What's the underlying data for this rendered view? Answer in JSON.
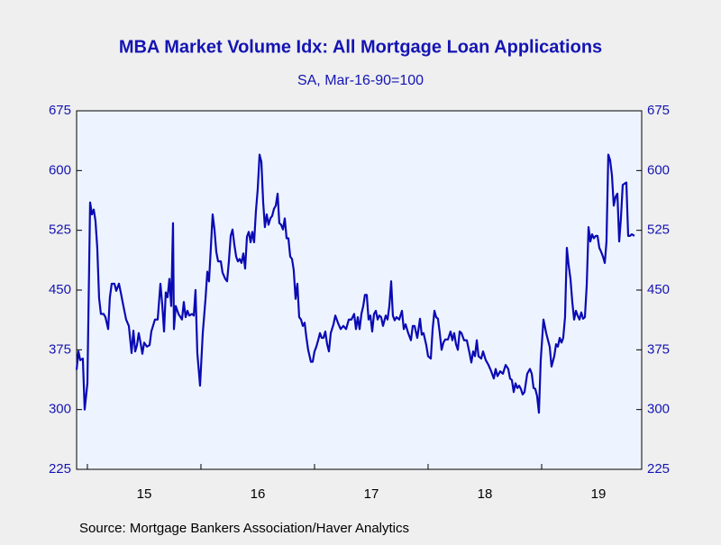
{
  "chart_data": {
    "type": "line",
    "title": "MBA Market Volume Idx: All Mortgage Loan Applications",
    "subtitle": "SA, Mar-16-90=100",
    "source": "Source:  Mortgage Bankers Association/Haver Analytics",
    "xlim": [
      2014.905,
      2019.881
    ],
    "xticks": [
      {
        "value": 2015.5,
        "label": "15"
      },
      {
        "value": 2016.5,
        "label": "16"
      },
      {
        "value": 2017.5,
        "label": "17"
      },
      {
        "value": 2018.5,
        "label": "18"
      },
      {
        "value": 2019.5,
        "label": "19"
      }
    ],
    "ylim": [
      225,
      675
    ],
    "yticks": [
      225,
      300,
      375,
      450,
      525,
      600,
      675
    ],
    "y2lim": [
      225,
      675
    ],
    "y2ticks": [
      225,
      300,
      375,
      450,
      525,
      600,
      675
    ],
    "x": [
      2014.905,
      2014.921,
      2014.937,
      2014.96,
      2014.976,
      2015.0,
      2015.024,
      2015.04,
      2015.056,
      2015.071,
      2015.087,
      2015.103,
      2015.119,
      2015.143,
      2015.159,
      2015.183,
      2015.198,
      2015.214,
      2015.238,
      2015.254,
      2015.278,
      2015.294,
      2015.317,
      2015.341,
      2015.365,
      2015.389,
      2015.405,
      2015.421,
      2015.437,
      2015.452,
      2015.468,
      2015.484,
      2015.5,
      2015.524,
      2015.548,
      2015.563,
      2015.595,
      2015.619,
      2015.643,
      2015.659,
      2015.675,
      2015.69,
      2015.706,
      2015.722,
      2015.738,
      2015.754,
      2015.762,
      2015.778,
      2015.802,
      2015.833,
      2015.849,
      2015.865,
      2015.881,
      2015.897,
      2015.921,
      2015.937,
      2015.952,
      2015.968,
      2015.992,
      2016.016,
      2016.04,
      2016.056,
      2016.071,
      2016.087,
      2016.103,
      2016.119,
      2016.135,
      2016.151,
      2016.175,
      2016.19,
      2016.214,
      2016.23,
      2016.246,
      2016.262,
      2016.278,
      2016.294,
      2016.31,
      2016.325,
      2016.341,
      2016.357,
      2016.373,
      2016.389,
      2016.405,
      2016.421,
      2016.437,
      2016.452,
      2016.468,
      2016.484,
      2016.5,
      2016.516,
      2016.532,
      2016.548,
      2016.563,
      2016.579,
      2016.595,
      2016.611,
      2016.627,
      2016.643,
      2016.659,
      2016.675,
      2016.69,
      2016.706,
      2016.722,
      2016.738,
      2016.754,
      2016.77,
      2016.786,
      2016.802,
      2016.817,
      2016.833,
      2016.849,
      2016.865,
      2016.881,
      2016.897,
      2016.913,
      2016.929,
      2016.944,
      2016.968,
      2016.984,
      2017.0,
      2017.016,
      2017.032,
      2017.048,
      2017.063,
      2017.079,
      2017.095,
      2017.111,
      2017.127,
      2017.143,
      2017.167,
      2017.183,
      2017.206,
      2017.23,
      2017.254,
      2017.278,
      2017.302,
      2017.325,
      2017.349,
      2017.365,
      2017.381,
      2017.397,
      2017.413,
      2017.429,
      2017.444,
      2017.46,
      2017.476,
      2017.492,
      2017.508,
      2017.524,
      2017.54,
      2017.556,
      2017.571,
      2017.587,
      2017.603,
      2017.627,
      2017.643,
      2017.659,
      2017.675,
      2017.69,
      2017.706,
      2017.722,
      2017.746,
      2017.77,
      2017.786,
      2017.802,
      2017.825,
      2017.849,
      2017.865,
      2017.881,
      2017.905,
      2017.929,
      2017.944,
      2017.96,
      2017.984,
      2018.0,
      2018.024,
      2018.04,
      2018.056,
      2018.071,
      2018.087,
      2018.103,
      2018.119,
      2018.135,
      2018.151,
      2018.175,
      2018.198,
      2018.214,
      2018.23,
      2018.246,
      2018.262,
      2018.278,
      2018.294,
      2018.317,
      2018.341,
      2018.365,
      2018.381,
      2018.397,
      2018.413,
      2018.429,
      2018.444,
      2018.468,
      2018.484,
      2018.508,
      2018.532,
      2018.556,
      2018.579,
      2018.595,
      2018.611,
      2018.635,
      2018.659,
      2018.683,
      2018.706,
      2018.722,
      2018.738,
      2018.754,
      2018.77,
      2018.786,
      2018.802,
      2018.817,
      2018.833,
      2018.849,
      2018.873,
      2018.897,
      2018.913,
      2018.929,
      2018.944,
      2018.96,
      2018.976,
      2018.992,
      2019.016,
      2019.04,
      2019.056,
      2019.071,
      2019.087,
      2019.111,
      2019.127,
      2019.143,
      2019.159,
      2019.175,
      2019.19,
      2019.206,
      2019.222,
      2019.238,
      2019.254,
      2019.27,
      2019.286,
      2019.302,
      2019.317,
      2019.333,
      2019.349,
      2019.365,
      2019.381,
      2019.397,
      2019.413,
      2019.429,
      2019.444,
      2019.46,
      2019.476,
      2019.492,
      2019.508,
      2019.524,
      2019.54,
      2019.556,
      2019.571,
      2019.587,
      2019.603,
      2019.619,
      2019.635,
      2019.651,
      2019.667,
      2019.683,
      2019.698,
      2019.714,
      2019.746,
      2019.762,
      2019.778,
      2019.794,
      2019.817
    ],
    "series": [
      {
        "color": "#0a0ab4",
        "values": [
          350,
          373,
          362,
          364,
          300,
          333,
          560,
          545,
          551,
          537,
          503,
          440,
          420,
          420,
          416,
          401,
          441,
          458,
          458,
          449,
          458,
          447,
          430,
          413,
          405,
          371,
          399,
          373,
          381,
          396,
          384,
          370,
          384,
          379,
          381,
          398,
          413,
          413,
          458,
          432,
          398,
          447,
          441,
          464,
          430,
          534,
          401,
          430,
          420,
          413,
          435,
          416,
          424,
          418,
          420,
          418,
          450,
          371,
          330,
          396,
          439,
          473,
          461,
          503,
          545,
          526,
          498,
          486,
          486,
          472,
          464,
          461,
          486,
          518,
          526,
          507,
          492,
          486,
          489,
          484,
          496,
          477,
          517,
          523,
          510,
          523,
          510,
          549,
          577,
          620,
          611,
          560,
          529,
          545,
          532,
          540,
          543,
          552,
          556,
          571,
          534,
          532,
          526,
          540,
          515,
          515,
          492,
          489,
          475,
          439,
          458,
          416,
          413,
          405,
          409,
          390,
          375,
          360,
          360,
          373,
          379,
          387,
          396,
          390,
          390,
          398,
          382,
          373,
          396,
          407,
          418,
          409,
          401,
          405,
          401,
          413,
          413,
          420,
          401,
          416,
          401,
          420,
          430,
          444,
          444,
          413,
          418,
          398,
          420,
          424,
          413,
          418,
          416,
          405,
          418,
          413,
          430,
          461,
          418,
          412,
          416,
          413,
          424,
          401,
          407,
          396,
          387,
          405,
          405,
          390,
          414,
          394,
          396,
          381,
          367,
          364,
          401,
          424,
          416,
          414,
          396,
          375,
          384,
          388,
          388,
          398,
          387,
          396,
          382,
          375,
          398,
          396,
          387,
          387,
          371,
          359,
          373,
          367,
          387,
          367,
          364,
          373,
          362,
          356,
          348,
          339,
          351,
          342,
          348,
          345,
          356,
          351,
          339,
          337,
          322,
          333,
          327,
          330,
          326,
          319,
          322,
          345,
          351,
          345,
          327,
          326,
          317,
          296,
          362,
          413,
          396,
          387,
          379,
          354,
          367,
          382,
          379,
          390,
          384,
          390,
          416,
          503,
          481,
          464,
          435,
          413,
          424,
          418,
          413,
          422,
          414,
          416,
          456,
          529,
          511,
          520,
          515,
          518,
          518,
          503,
          498,
          492,
          484,
          511,
          620,
          613,
          594,
          556,
          567,
          571,
          511,
          540,
          582,
          585,
          518,
          518,
          520,
          518
        ]
      }
    ]
  }
}
